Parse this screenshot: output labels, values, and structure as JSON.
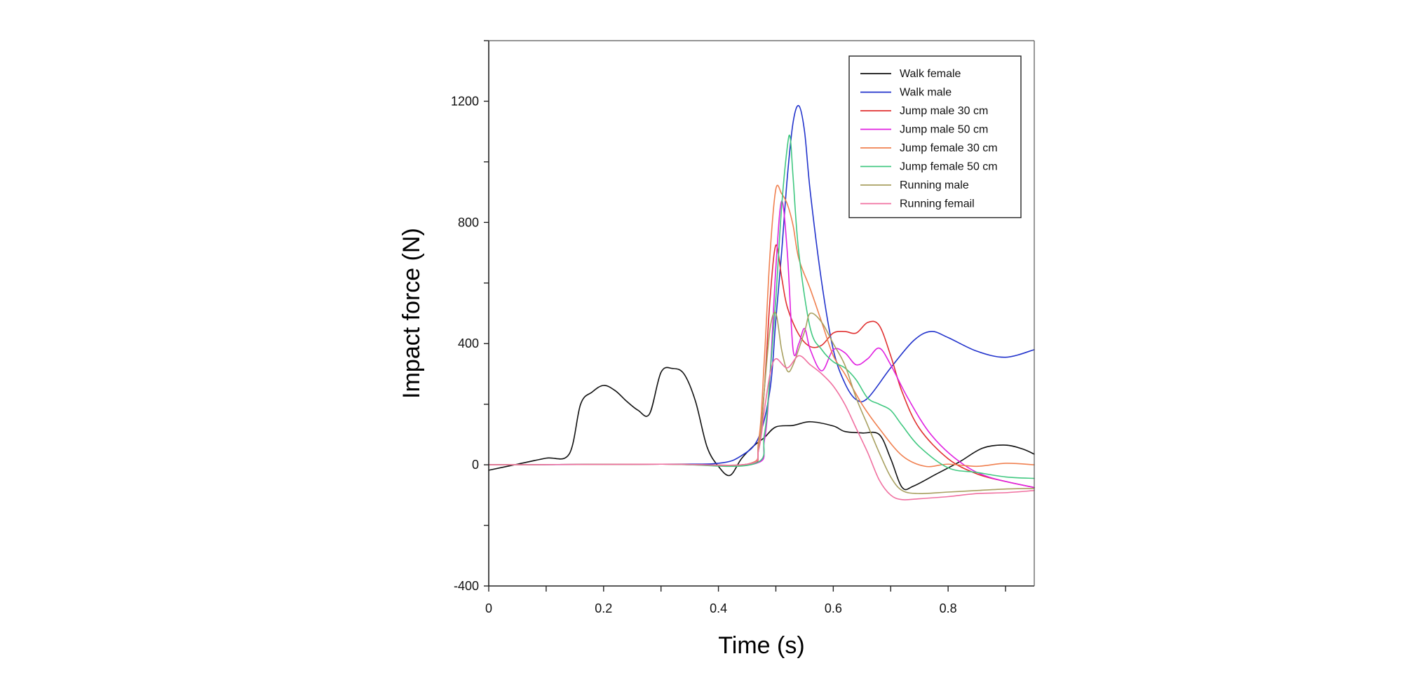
{
  "chart_data": {
    "type": "line",
    "xlabel": "Time (s)",
    "ylabel": "Impact force (N)",
    "xlim": [
      0,
      0.95
    ],
    "ylim": [
      -400,
      1400
    ],
    "x_ticks": [
      "0",
      "0.2",
      "0.4",
      "0.6",
      "0.8"
    ],
    "y_ticks": [
      "-400",
      "0",
      "400",
      "800",
      "1200"
    ],
    "grid": false,
    "legend_position": "top-right",
    "series": [
      {
        "name": "Walk female",
        "color": "#111111",
        "points": [
          [
            0,
            -18
          ],
          [
            0.05,
            2
          ],
          [
            0.1,
            22
          ],
          [
            0.14,
            35
          ],
          [
            0.16,
            200
          ],
          [
            0.18,
            240
          ],
          [
            0.2,
            262
          ],
          [
            0.22,
            245
          ],
          [
            0.24,
            210
          ],
          [
            0.26,
            180
          ],
          [
            0.28,
            168
          ],
          [
            0.3,
            305
          ],
          [
            0.32,
            318
          ],
          [
            0.34,
            300
          ],
          [
            0.36,
            210
          ],
          [
            0.38,
            60
          ],
          [
            0.4,
            -5
          ],
          [
            0.42,
            -35
          ],
          [
            0.44,
            20
          ],
          [
            0.46,
            60
          ],
          [
            0.48,
            90
          ],
          [
            0.5,
            125
          ],
          [
            0.53,
            130
          ],
          [
            0.56,
            142
          ],
          [
            0.6,
            128
          ],
          [
            0.62,
            110
          ],
          [
            0.65,
            105
          ],
          [
            0.68,
            100
          ],
          [
            0.7,
            20
          ],
          [
            0.72,
            -75
          ],
          [
            0.74,
            -70
          ],
          [
            0.78,
            -30
          ],
          [
            0.82,
            10
          ],
          [
            0.86,
            55
          ],
          [
            0.9,
            65
          ],
          [
            0.93,
            52
          ],
          [
            0.95,
            35
          ]
        ]
      },
      {
        "name": "Walk male",
        "color": "#2233cc",
        "points": [
          [
            0,
            0
          ],
          [
            0.3,
            2
          ],
          [
            0.4,
            5
          ],
          [
            0.44,
            30
          ],
          [
            0.47,
            90
          ],
          [
            0.49,
            250
          ],
          [
            0.5,
            480
          ],
          [
            0.51,
            700
          ],
          [
            0.52,
            950
          ],
          [
            0.53,
            1130
          ],
          [
            0.54,
            1185
          ],
          [
            0.55,
            1100
          ],
          [
            0.56,
            900
          ],
          [
            0.58,
            600
          ],
          [
            0.6,
            380
          ],
          [
            0.62,
            270
          ],
          [
            0.64,
            215
          ],
          [
            0.66,
            220
          ],
          [
            0.7,
            320
          ],
          [
            0.74,
            410
          ],
          [
            0.77,
            440
          ],
          [
            0.8,
            420
          ],
          [
            0.85,
            375
          ],
          [
            0.9,
            355
          ],
          [
            0.95,
            380
          ]
        ]
      },
      {
        "name": "Jump male 30 cm",
        "color": "#e03030",
        "points": [
          [
            0,
            0
          ],
          [
            0.3,
            2
          ],
          [
            0.45,
            2
          ],
          [
            0.47,
            50
          ],
          [
            0.48,
            250
          ],
          [
            0.49,
            550
          ],
          [
            0.5,
            725
          ],
          [
            0.51,
            620
          ],
          [
            0.52,
            520
          ],
          [
            0.54,
            430
          ],
          [
            0.56,
            390
          ],
          [
            0.58,
            395
          ],
          [
            0.6,
            435
          ],
          [
            0.62,
            440
          ],
          [
            0.64,
            435
          ],
          [
            0.66,
            470
          ],
          [
            0.68,
            460
          ],
          [
            0.7,
            360
          ],
          [
            0.72,
            240
          ],
          [
            0.75,
            120
          ],
          [
            0.8,
            20
          ],
          [
            0.85,
            -30
          ],
          [
            0.9,
            -55
          ],
          [
            0.95,
            -75
          ]
        ]
      },
      {
        "name": "Jump male 50 cm",
        "color": "#e020e0",
        "points": [
          [
            0,
            0
          ],
          [
            0.3,
            2
          ],
          [
            0.46,
            2
          ],
          [
            0.48,
            80
          ],
          [
            0.49,
            300
          ],
          [
            0.5,
            650
          ],
          [
            0.51,
            870
          ],
          [
            0.52,
            700
          ],
          [
            0.53,
            380
          ],
          [
            0.54,
            400
          ],
          [
            0.55,
            450
          ],
          [
            0.56,
            380
          ],
          [
            0.58,
            310
          ],
          [
            0.6,
            380
          ],
          [
            0.62,
            370
          ],
          [
            0.64,
            330
          ],
          [
            0.66,
            350
          ],
          [
            0.68,
            385
          ],
          [
            0.7,
            330
          ],
          [
            0.73,
            220
          ],
          [
            0.77,
            100
          ],
          [
            0.82,
            10
          ],
          [
            0.87,
            -40
          ],
          [
            0.95,
            -75
          ]
        ]
      },
      {
        "name": "Jump female 30 cm",
        "color": "#f08050",
        "points": [
          [
            0,
            0
          ],
          [
            0.3,
            2
          ],
          [
            0.45,
            2
          ],
          [
            0.47,
            80
          ],
          [
            0.48,
            350
          ],
          [
            0.49,
            700
          ],
          [
            0.5,
            910
          ],
          [
            0.51,
            895
          ],
          [
            0.52,
            860
          ],
          [
            0.53,
            790
          ],
          [
            0.54,
            680
          ],
          [
            0.56,
            580
          ],
          [
            0.58,
            470
          ],
          [
            0.6,
            360
          ],
          [
            0.62,
            300
          ],
          [
            0.65,
            200
          ],
          [
            0.68,
            120
          ],
          [
            0.72,
            30
          ],
          [
            0.76,
            -5
          ],
          [
            0.8,
            2
          ],
          [
            0.85,
            -5
          ],
          [
            0.9,
            5
          ],
          [
            0.95,
            0
          ]
        ]
      },
      {
        "name": "Jump female 50 cm",
        "color": "#40c880",
        "points": [
          [
            0,
            0
          ],
          [
            0.3,
            2
          ],
          [
            0.46,
            2
          ],
          [
            0.48,
            100
          ],
          [
            0.49,
            300
          ],
          [
            0.5,
            550
          ],
          [
            0.51,
            850
          ],
          [
            0.52,
            1050
          ],
          [
            0.525,
            1080
          ],
          [
            0.53,
            950
          ],
          [
            0.54,
            700
          ],
          [
            0.56,
            450
          ],
          [
            0.58,
            380
          ],
          [
            0.6,
            340
          ],
          [
            0.62,
            320
          ],
          [
            0.64,
            280
          ],
          [
            0.66,
            220
          ],
          [
            0.68,
            200
          ],
          [
            0.7,
            180
          ],
          [
            0.72,
            130
          ],
          [
            0.75,
            60
          ],
          [
            0.8,
            -10
          ],
          [
            0.85,
            -25
          ],
          [
            0.9,
            -40
          ],
          [
            0.95,
            -45
          ]
        ]
      },
      {
        "name": "Running male",
        "color": "#a8a060",
        "points": [
          [
            0,
            0
          ],
          [
            0.3,
            2
          ],
          [
            0.45,
            2
          ],
          [
            0.47,
            60
          ],
          [
            0.48,
            250
          ],
          [
            0.49,
            450
          ],
          [
            0.5,
            500
          ],
          [
            0.51,
            380
          ],
          [
            0.52,
            310
          ],
          [
            0.53,
            330
          ],
          [
            0.55,
            440
          ],
          [
            0.56,
            500
          ],
          [
            0.58,
            470
          ],
          [
            0.6,
            400
          ],
          [
            0.62,
            330
          ],
          [
            0.64,
            220
          ],
          [
            0.66,
            130
          ],
          [
            0.68,
            40
          ],
          [
            0.7,
            -40
          ],
          [
            0.72,
            -85
          ],
          [
            0.75,
            -95
          ],
          [
            0.8,
            -90
          ],
          [
            0.85,
            -85
          ],
          [
            0.9,
            -80
          ],
          [
            0.95,
            -78
          ]
        ]
      },
      {
        "name": "Running femail",
        "color": "#f070a0",
        "points": [
          [
            0,
            0
          ],
          [
            0.3,
            2
          ],
          [
            0.45,
            2
          ],
          [
            0.47,
            50
          ],
          [
            0.48,
            180
          ],
          [
            0.49,
            300
          ],
          [
            0.5,
            350
          ],
          [
            0.52,
            320
          ],
          [
            0.54,
            360
          ],
          [
            0.56,
            330
          ],
          [
            0.58,
            300
          ],
          [
            0.6,
            260
          ],
          [
            0.62,
            200
          ],
          [
            0.64,
            120
          ],
          [
            0.66,
            40
          ],
          [
            0.68,
            -50
          ],
          [
            0.7,
            -100
          ],
          [
            0.72,
            -115
          ],
          [
            0.75,
            -112
          ],
          [
            0.8,
            -105
          ],
          [
            0.85,
            -95
          ],
          [
            0.9,
            -92
          ],
          [
            0.95,
            -85
          ]
        ]
      }
    ]
  }
}
